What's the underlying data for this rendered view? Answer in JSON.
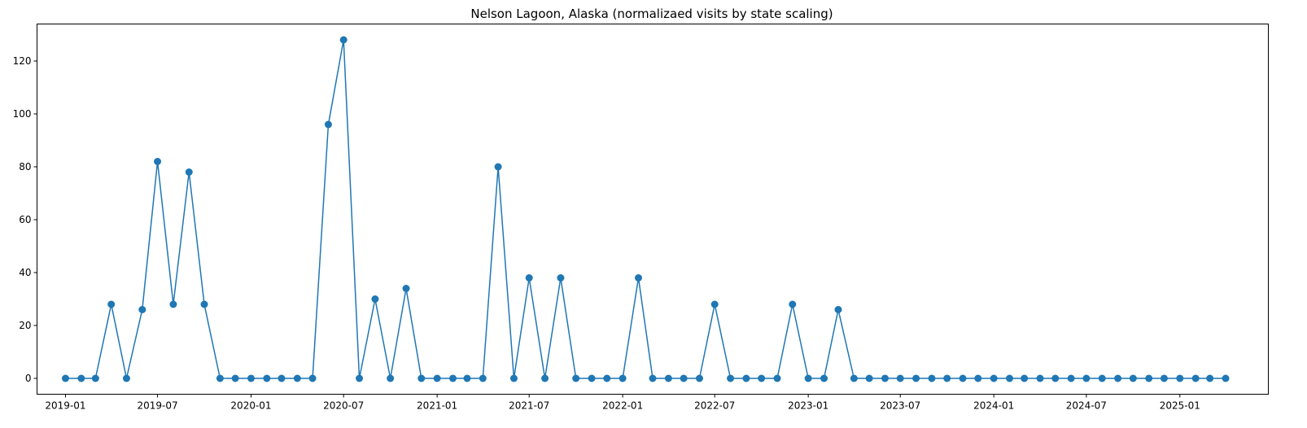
{
  "chart_data": {
    "type": "line",
    "title": "Nelson Lagoon, Alaska (normalizaed visits by state scaling)",
    "xlabel": "",
    "ylabel": "",
    "x_tick_labels": [
      "2019-01",
      "2019-07",
      "2020-01",
      "2020-07",
      "2021-01",
      "2021-07",
      "2022-01",
      "2022-07",
      "2023-01",
      "2023-07",
      "2024-01",
      "2024-07",
      "2025-01"
    ],
    "y_ticks": [
      0,
      20,
      40,
      60,
      80,
      100,
      120
    ],
    "ylim": [
      -6,
      134
    ],
    "xlim": [
      "2018-11-06",
      "2025-06-24"
    ],
    "grid": false,
    "color": "#1f77b4",
    "marker": "circle",
    "series": [
      {
        "x": [
          "2019-01",
          "2019-02",
          "2019-03",
          "2019-04",
          "2019-05",
          "2019-06",
          "2019-07",
          "2019-08",
          "2019-09",
          "2019-10",
          "2019-11",
          "2019-12",
          "2020-01",
          "2020-02",
          "2020-03",
          "2020-04",
          "2020-05",
          "2020-06",
          "2020-07",
          "2020-08",
          "2020-09",
          "2020-10",
          "2020-11",
          "2020-12",
          "2021-01",
          "2021-02",
          "2021-03",
          "2021-04",
          "2021-05",
          "2021-06",
          "2021-07",
          "2021-08",
          "2021-09",
          "2021-10",
          "2021-11",
          "2021-12",
          "2022-01",
          "2022-02",
          "2022-03",
          "2022-04",
          "2022-05",
          "2022-06",
          "2022-07",
          "2022-08",
          "2022-09",
          "2022-10",
          "2022-11",
          "2022-12",
          "2023-01",
          "2023-02",
          "2023-03",
          "2023-04",
          "2023-05",
          "2023-06",
          "2023-07",
          "2023-08",
          "2023-09",
          "2023-10",
          "2023-11",
          "2023-12",
          "2024-01",
          "2024-02",
          "2024-03",
          "2024-04",
          "2024-05",
          "2024-06",
          "2024-07",
          "2024-08",
          "2024-09",
          "2024-10",
          "2024-11",
          "2024-12",
          "2025-01",
          "2025-02",
          "2025-03",
          "2025-04"
        ],
        "values": [
          0,
          0,
          0,
          28,
          0,
          26,
          82,
          28,
          78,
          28,
          0,
          0,
          0,
          0,
          0,
          0,
          0,
          96,
          128,
          0,
          30,
          0,
          34,
          0,
          0,
          0,
          0,
          0,
          80,
          0,
          38,
          0,
          38,
          0,
          0,
          0,
          0,
          38,
          0,
          0,
          0,
          0,
          28,
          0,
          0,
          0,
          0,
          28,
          0,
          0,
          26,
          0,
          0,
          0,
          0,
          0,
          0,
          0,
          0,
          0,
          0,
          0,
          0,
          0,
          0,
          0,
          0,
          0,
          0,
          0,
          0,
          0,
          0,
          0,
          0,
          0
        ]
      }
    ]
  }
}
